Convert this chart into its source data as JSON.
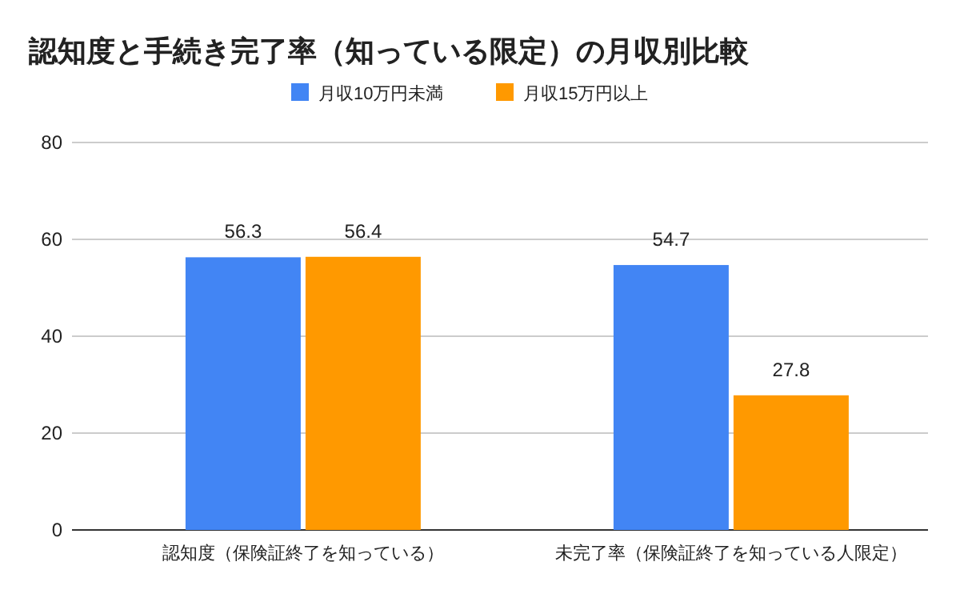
{
  "chart_data": {
    "type": "bar",
    "title": "認知度と手続き完了率（知っている限定）の月収別比較",
    "categories": [
      "認知度（保険証終了を知っている）",
      "未完了率（保険証終了を知っている人限定）"
    ],
    "series": [
      {
        "name": "月収10万円未満",
        "color": "#4285f4",
        "values": [
          56.3,
          54.7
        ]
      },
      {
        "name": "月収15万円以上",
        "color": "#ff9900",
        "values": [
          56.4,
          27.8
        ]
      }
    ],
    "ylim": [
      0,
      80
    ],
    "yticks": [
      0,
      20,
      40,
      60,
      80
    ],
    "grid": "y",
    "legend": "top",
    "data_labels": true
  }
}
